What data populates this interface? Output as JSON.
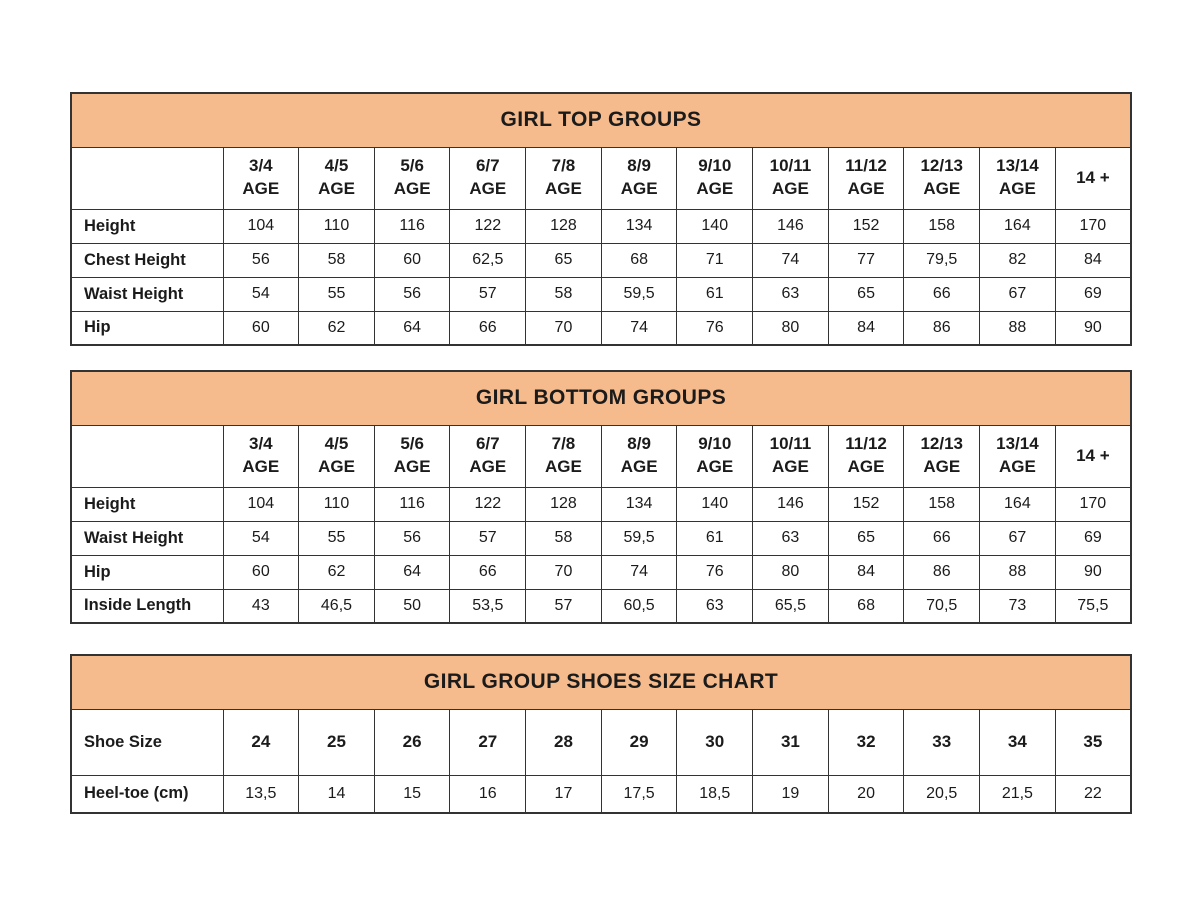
{
  "colors": {
    "band_bg": "#F6BB8D",
    "border": "#333333",
    "text": "#1B1B1B",
    "page_bg": "#FFFFFF"
  },
  "tables": [
    {
      "id": "girl-top-groups",
      "title": "GIRL TOP GROUPS",
      "columns": [
        {
          "age": "3/4",
          "suffix": "AGE"
        },
        {
          "age": "4/5",
          "suffix": "AGE"
        },
        {
          "age": "5/6",
          "suffix": "AGE"
        },
        {
          "age": "6/7",
          "suffix": "AGE"
        },
        {
          "age": "7/8",
          "suffix": "AGE"
        },
        {
          "age": "8/9",
          "suffix": "AGE"
        },
        {
          "age": "9/10",
          "suffix": "AGE"
        },
        {
          "age": "10/11",
          "suffix": "AGE"
        },
        {
          "age": "11/12",
          "suffix": "AGE"
        },
        {
          "age": "12/13",
          "suffix": "AGE"
        },
        {
          "age": "13/14",
          "suffix": "AGE"
        },
        {
          "age": "14 +",
          "suffix": ""
        }
      ],
      "rows": [
        {
          "label": "Height",
          "values": [
            "104",
            "110",
            "116",
            "122",
            "128",
            "134",
            "140",
            "146",
            "152",
            "158",
            "164",
            "170"
          ],
          "bold_values": false
        },
        {
          "label": "Chest Height",
          "values": [
            "56",
            "58",
            "60",
            "62,5",
            "65",
            "68",
            "71",
            "74",
            "77",
            "79,5",
            "82",
            "84"
          ],
          "bold_values": false
        },
        {
          "label": "Waist Height",
          "values": [
            "54",
            "55",
            "56",
            "57",
            "58",
            "59,5",
            "61",
            "63",
            "65",
            "66",
            "67",
            "69"
          ],
          "bold_values": false
        },
        {
          "label": "Hip",
          "values": [
            "60",
            "62",
            "64",
            "66",
            "70",
            "74",
            "76",
            "80",
            "84",
            "86",
            "88",
            "90"
          ],
          "bold_values": false
        }
      ]
    },
    {
      "id": "girl-bottom-groups",
      "title": "GIRL BOTTOM GROUPS",
      "columns": [
        {
          "age": "3/4",
          "suffix": "AGE"
        },
        {
          "age": "4/5",
          "suffix": "AGE"
        },
        {
          "age": "5/6",
          "suffix": "AGE"
        },
        {
          "age": "6/7",
          "suffix": "AGE"
        },
        {
          "age": "7/8",
          "suffix": "AGE"
        },
        {
          "age": "8/9",
          "suffix": "AGE"
        },
        {
          "age": "9/10",
          "suffix": "AGE"
        },
        {
          "age": "10/11",
          "suffix": "AGE"
        },
        {
          "age": "11/12",
          "suffix": "AGE"
        },
        {
          "age": "12/13",
          "suffix": "AGE"
        },
        {
          "age": "13/14",
          "suffix": "AGE"
        },
        {
          "age": "14 +",
          "suffix": ""
        }
      ],
      "rows": [
        {
          "label": "Height",
          "values": [
            "104",
            "110",
            "116",
            "122",
            "128",
            "134",
            "140",
            "146",
            "152",
            "158",
            "164",
            "170"
          ],
          "bold_values": false
        },
        {
          "label": "Waist Height",
          "values": [
            "54",
            "55",
            "56",
            "57",
            "58",
            "59,5",
            "61",
            "63",
            "65",
            "66",
            "67",
            "69"
          ],
          "bold_values": false
        },
        {
          "label": "Hip",
          "values": [
            "60",
            "62",
            "64",
            "66",
            "70",
            "74",
            "76",
            "80",
            "84",
            "86",
            "88",
            "90"
          ],
          "bold_values": false
        },
        {
          "label": "Inside Length",
          "values": [
            "43",
            "46,5",
            "50",
            "53,5",
            "57",
            "60,5",
            "63",
            "65,5",
            "68",
            "70,5",
            "73",
            "75,5"
          ],
          "bold_values": false
        }
      ]
    },
    {
      "id": "girl-group-shoes-size-chart",
      "title": "GIRL GROUP SHOES SIZE CHART",
      "columns": null,
      "rows": [
        {
          "label": "Shoe Size",
          "values": [
            "24",
            "25",
            "26",
            "27",
            "28",
            "29",
            "30",
            "31",
            "32",
            "33",
            "34",
            "35"
          ],
          "bold_values": true
        },
        {
          "label": "Heel-toe (cm)",
          "values": [
            "13,5",
            "14",
            "15",
            "16",
            "17",
            "17,5",
            "18,5",
            "19",
            "20",
            "20,5",
            "21,5",
            "22"
          ],
          "bold_values": false
        }
      ]
    }
  ]
}
